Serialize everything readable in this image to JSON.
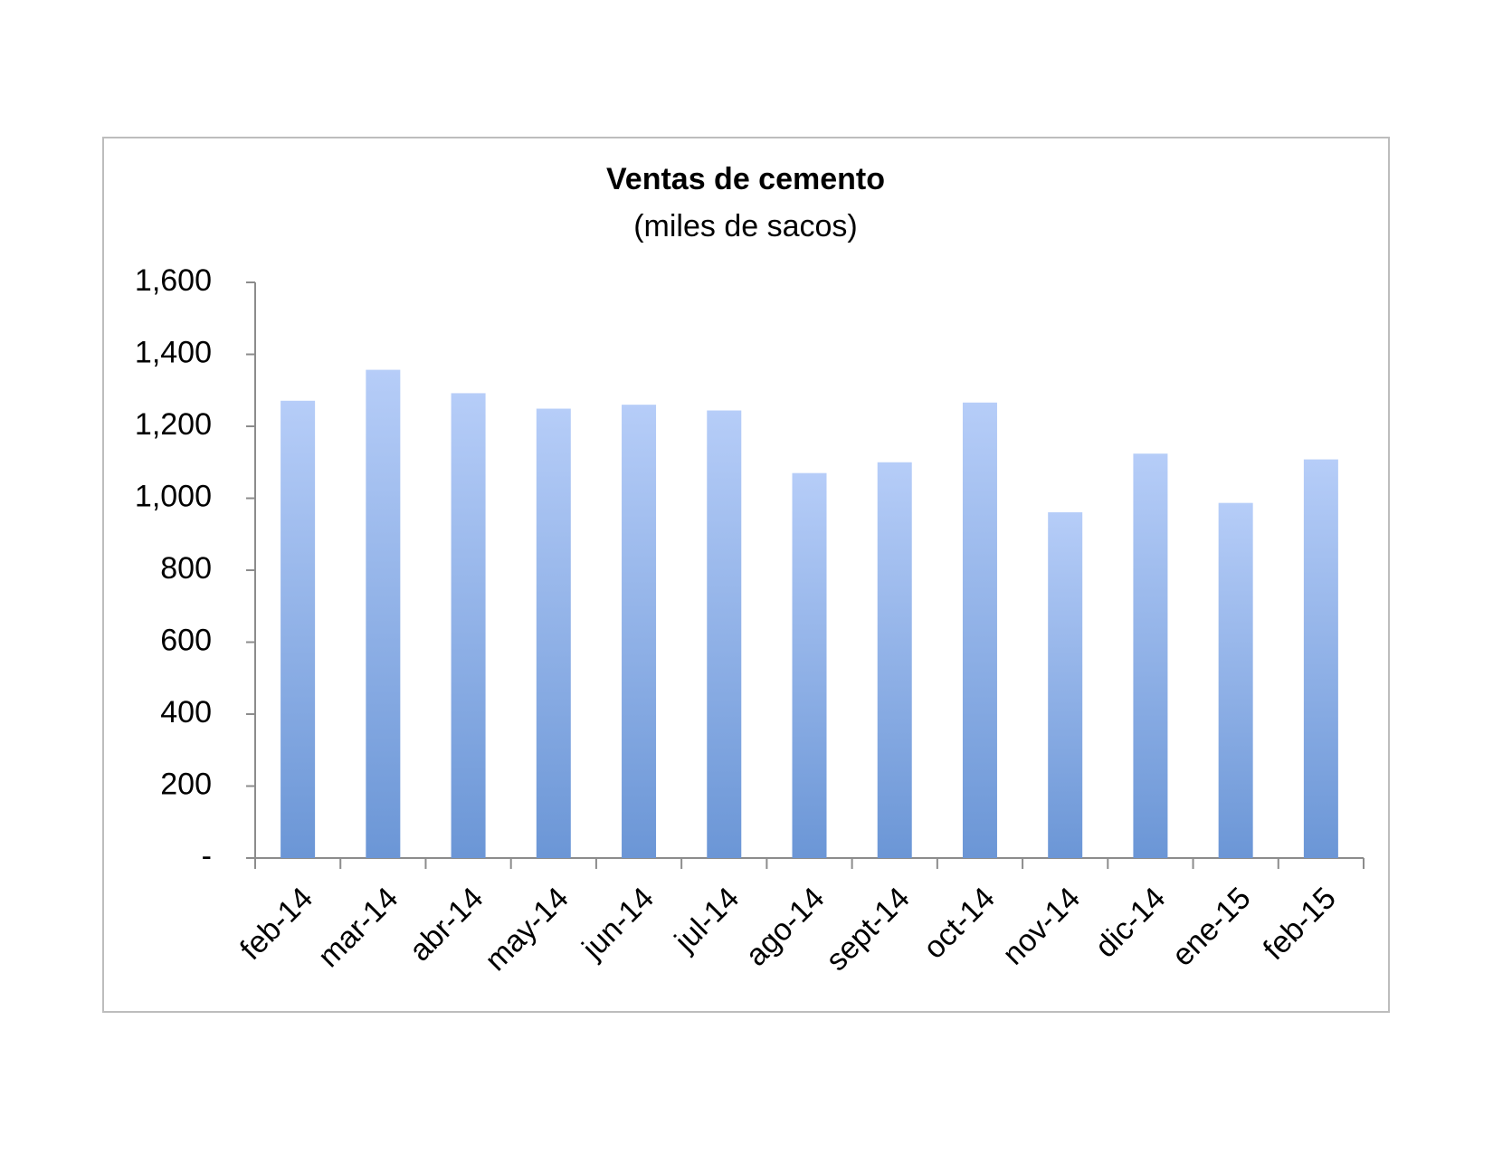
{
  "chart_data": {
    "type": "bar",
    "title": "Ventas de cemento",
    "subtitle": "(miles de sacos)",
    "categories": [
      "feb-14",
      "mar-14",
      "abr-14",
      "may-14",
      "jun-14",
      "jul-14",
      "ago-14",
      "sept-14",
      "oct-14",
      "nov-14",
      "dic-14",
      "ene-15",
      "feb-15"
    ],
    "values": [
      1271,
      1357,
      1292,
      1249,
      1260,
      1244,
      1070,
      1100,
      1266,
      961,
      1124,
      987,
      1108
    ],
    "color": [
      "#b6cdf8",
      "#6b96d6"
    ],
    "ylim": [
      0,
      1600
    ],
    "yticks": [
      {
        "value": 0,
        "label": "-"
      },
      200,
      400,
      600,
      800,
      {
        "value": 1000,
        "label": "1,000"
      },
      {
        "value": 1200,
        "label": "1,200"
      },
      {
        "value": 1400,
        "label": "1,400"
      },
      {
        "value": 1600,
        "label": "1,600"
      }
    ],
    "grid": false
  }
}
